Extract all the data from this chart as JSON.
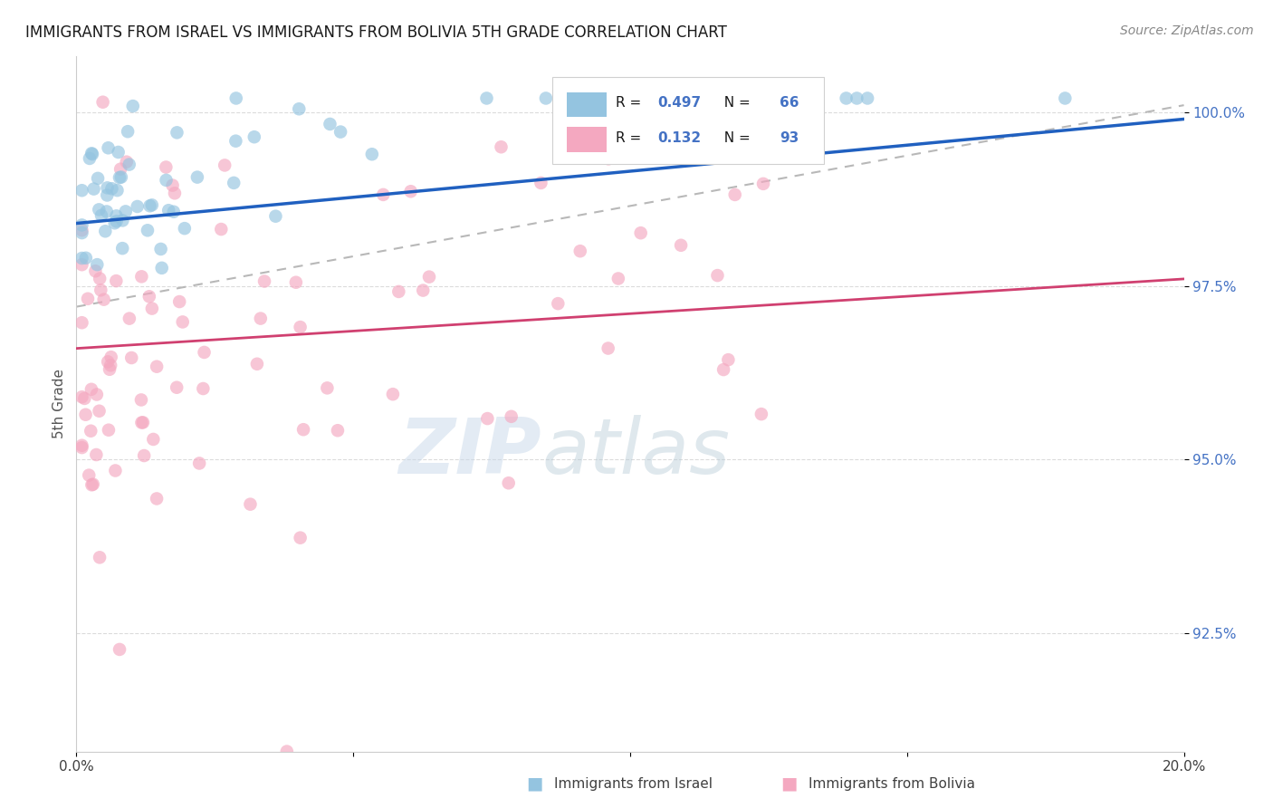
{
  "title": "IMMIGRANTS FROM ISRAEL VS IMMIGRANTS FROM BOLIVIA 5TH GRADE CORRELATION CHART",
  "source": "Source: ZipAtlas.com",
  "ylabel": "5th Grade",
  "xlim": [
    0.0,
    0.2
  ],
  "ylim": [
    0.908,
    1.008
  ],
  "yticks": [
    0.925,
    0.95,
    0.975,
    1.0
  ],
  "ytick_labels": [
    "92.5%",
    "95.0%",
    "97.5%",
    "100.0%"
  ],
  "color_israel": "#94c4e0",
  "color_bolivia": "#f4a8c0",
  "color_trend_israel": "#2060c0",
  "color_trend_bolivia": "#d04070",
  "color_trend_dashed": "#b8b8b8",
  "watermark_zip": "ZIP",
  "watermark_atlas": "atlas",
  "background_color": "#ffffff",
  "grid_color": "#d8d8d8",
  "title_color": "#1a1a1a",
  "source_color": "#888888",
  "ytick_color": "#4472c4",
  "xtick_color": "#404040",
  "legend_r_color": "#4472c4",
  "legend_text_color": "#1a1a1a",
  "legend_box_color": "#e8e8e8"
}
